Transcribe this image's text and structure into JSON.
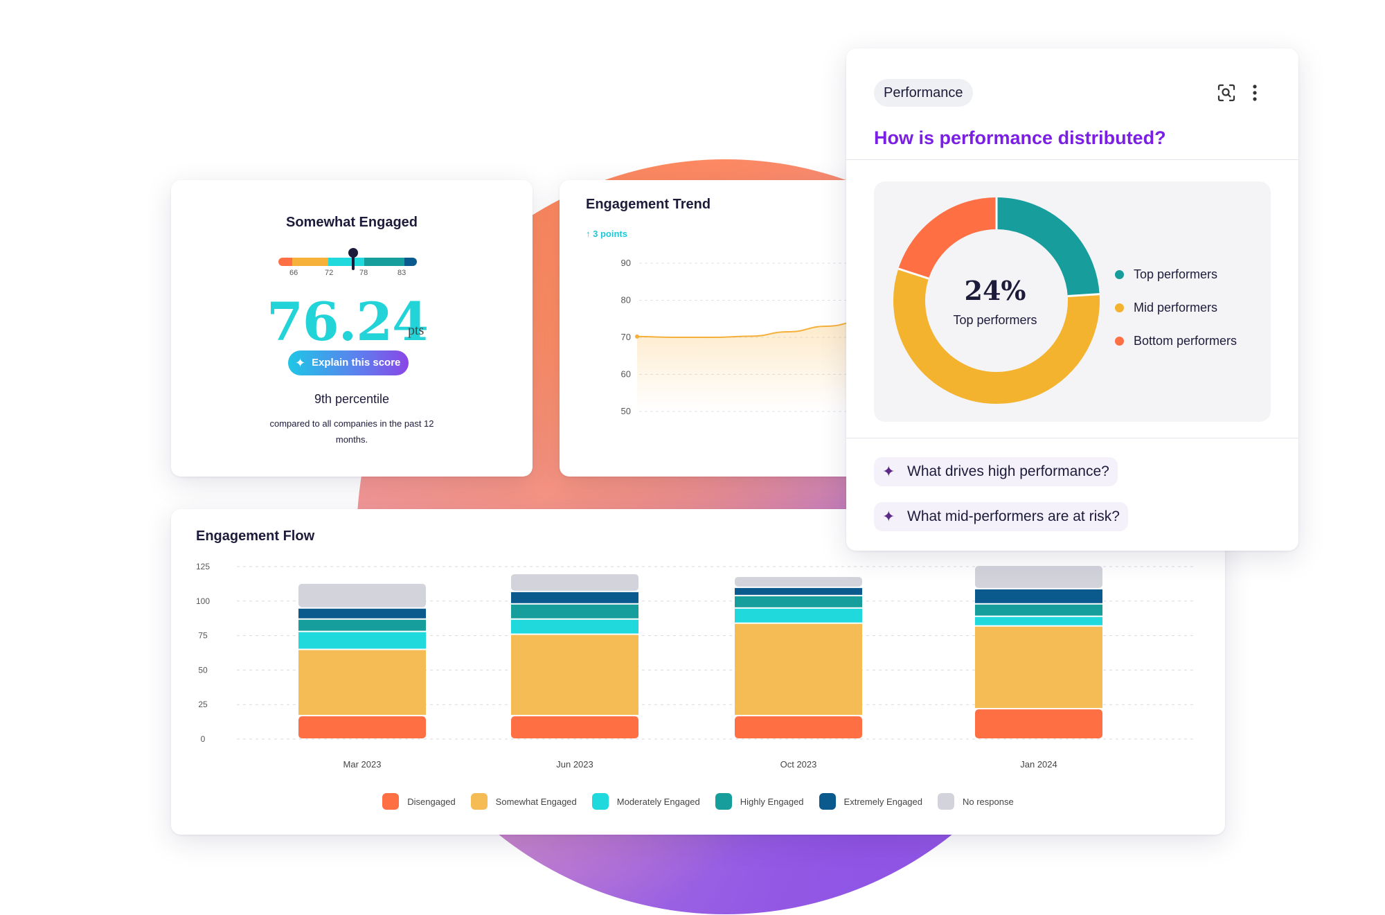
{
  "score_card": {
    "title": "Somewhat Engaged",
    "gauge_ticks": [
      "66",
      "72",
      "78",
      "83"
    ],
    "gauge_marker_fraction": 0.54,
    "score": "76.24",
    "unit": "pts",
    "explain_button": "Explain this score",
    "percentile": "9th percentile",
    "comparison": "compared to all companies in the past 12 months."
  },
  "trend_card": {
    "title": "Engagement Trend",
    "delta": "3 points",
    "y_ticks": [
      "90",
      "80",
      "70",
      "60",
      "50"
    ]
  },
  "flow_card": {
    "title": "Engagement Flow",
    "legend": [
      {
        "label": "Disengaged",
        "color": "#ff6f44"
      },
      {
        "label": "Somewhat Engaged",
        "color": "#f5bb55"
      },
      {
        "label": "Moderately Engaged",
        "color": "#1fd9dc"
      },
      {
        "label": "Highly Engaged",
        "color": "#169e9c"
      },
      {
        "label": "Extremely Engaged",
        "color": "#0b5a8e"
      },
      {
        "label": "No response",
        "color": "#d3d3dc"
      }
    ]
  },
  "chart_data": [
    {
      "type": "line",
      "title": "Engagement Trend",
      "ylim": [
        50,
        90
      ],
      "y_ticks": [
        90,
        80,
        70,
        60,
        50
      ],
      "grid": true,
      "series": [
        {
          "values": [
            70.2,
            70.0,
            70.0,
            70.3,
            71.5,
            73.0,
            74.5
          ]
        }
      ]
    },
    {
      "type": "bar",
      "stacked": true,
      "title": "Engagement Flow",
      "categories": [
        "Mar 2023",
        "Jun 2023",
        "Oct 2023",
        "Jan 2024"
      ],
      "ylim": [
        0,
        125
      ],
      "y_ticks": [
        125,
        100,
        75,
        50,
        25,
        0
      ],
      "grid": true,
      "legend_placement": "bottom",
      "series": [
        {
          "name": "Disengaged",
          "values": [
            17,
            17,
            17,
            22
          ]
        },
        {
          "name": "Somewhat Engaged",
          "values": [
            48,
            59,
            67,
            60
          ]
        },
        {
          "name": "Moderately Engaged",
          "values": [
            13,
            11,
            11,
            7
          ]
        },
        {
          "name": "Highly Engaged",
          "values": [
            9,
            11,
            9,
            9
          ]
        },
        {
          "name": "Extremely Engaged",
          "values": [
            8,
            9,
            6,
            11
          ]
        },
        {
          "name": "No response",
          "values": [
            18,
            13,
            8,
            17
          ]
        }
      ]
    },
    {
      "type": "pie",
      "title": "How is performance distributed?",
      "center_value": "24%",
      "center_label": "Top performers",
      "legend_placement": "right",
      "categories": [
        "Top performers",
        "Mid performers",
        "Bottom performers"
      ],
      "values": [
        24,
        56,
        20
      ],
      "colors": [
        "#169d9c",
        "#f3b32f",
        "#ff6f44"
      ]
    }
  ],
  "perf_card": {
    "tag": "Performance",
    "question": "How is performance distributed?",
    "center_value": "24%",
    "center_label": "Top performers",
    "legend": [
      {
        "label": "Top performers",
        "color": "#169d9c"
      },
      {
        "label": "Mid performers",
        "color": "#f3b32f"
      },
      {
        "label": "Bottom performers",
        "color": "#ff6f44"
      }
    ],
    "suggestions": [
      "What drives high performance?",
      "What mid-performers are at risk?"
    ],
    "scan_icon": "scan-search-icon",
    "more_icon": "more-vertical-icon"
  }
}
